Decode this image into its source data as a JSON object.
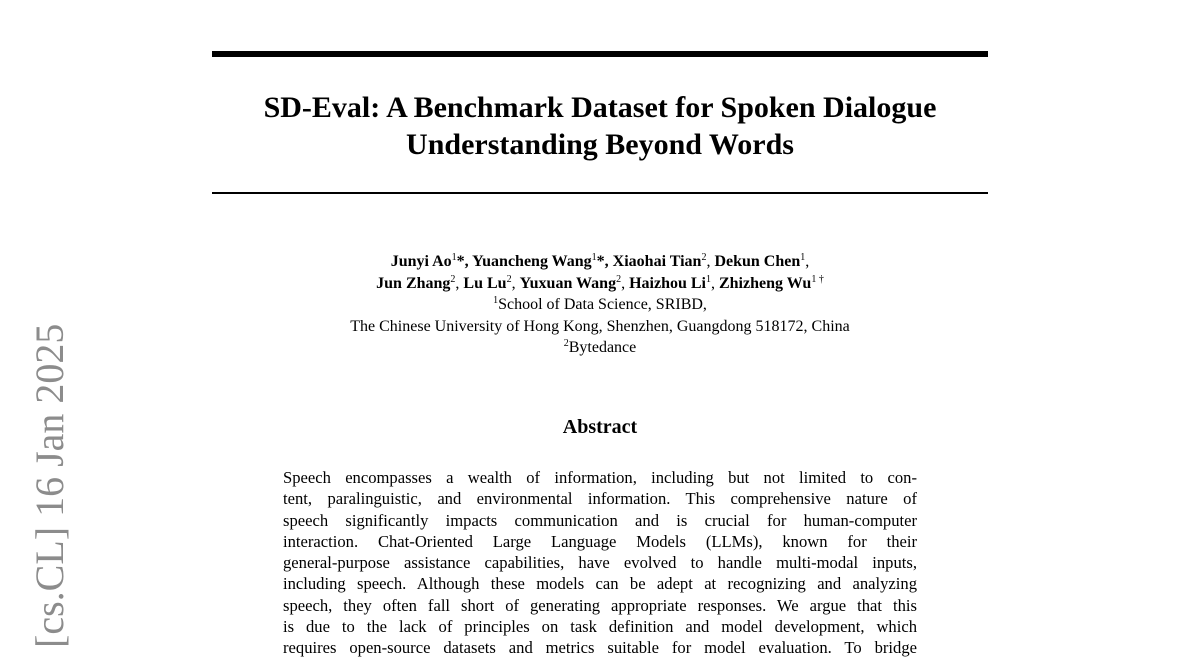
{
  "arxiv_stamp": "[cs.CL]  16 Jan 2025",
  "title": [
    "SD-Eval: A Benchmark Dataset for Spoken Dialogue",
    "Understanding Beyond Words"
  ],
  "authors": {
    "line1": [
      {
        "name": "Junyi Ao",
        "sup": "1",
        "sep": "*, "
      },
      {
        "name": "Yuancheng Wang",
        "sup": "1",
        "sep": "*, "
      },
      {
        "name": "Xiaohai Tian",
        "sup": "2",
        "sep": ", "
      },
      {
        "name": "Dekun Chen",
        "sup": "1",
        "sep": ","
      }
    ],
    "line2": [
      {
        "name": "Jun Zhang",
        "sup": "2",
        "sep": ", "
      },
      {
        "name": "Lu Lu",
        "sup": "2",
        "sep": ", "
      },
      {
        "name": "Yuxuan Wang",
        "sup": "2",
        "sep": ", "
      },
      {
        "name": "Haizhou Li",
        "sup": "1",
        "sep": ", "
      },
      {
        "name": "Zhizheng Wu",
        "sup": "1 †",
        "sep": ""
      }
    ],
    "affiliation1_sup": "1",
    "affiliation1": "School of Data Science, SRIBD,",
    "affiliation1_line2": "The Chinese University of Hong Kong, Shenzhen, Guangdong 518172, China",
    "affiliation2_sup": "2",
    "affiliation2": "Bytedance"
  },
  "abstract_heading": "Abstract",
  "abstract_lines": [
    "Speech encompasses a wealth of information, including but not limited to con-",
    "tent, paralinguistic, and environmental information. This comprehensive nature of",
    "speech significantly impacts communication and is crucial for human-computer",
    "interaction. Chat-Oriented Large Language Models (LLMs), known for their",
    "general-purpose assistance capabilities, have evolved to handle multi-modal inputs,",
    "including speech. Although these models can be adept at recognizing and analyzing",
    "speech, they often fall short of generating appropriate responses. We argue that this",
    "is due to the lack of principles on task definition and model development, which",
    "requires open-source datasets and metrics suitable for model evaluation. To bridge"
  ]
}
